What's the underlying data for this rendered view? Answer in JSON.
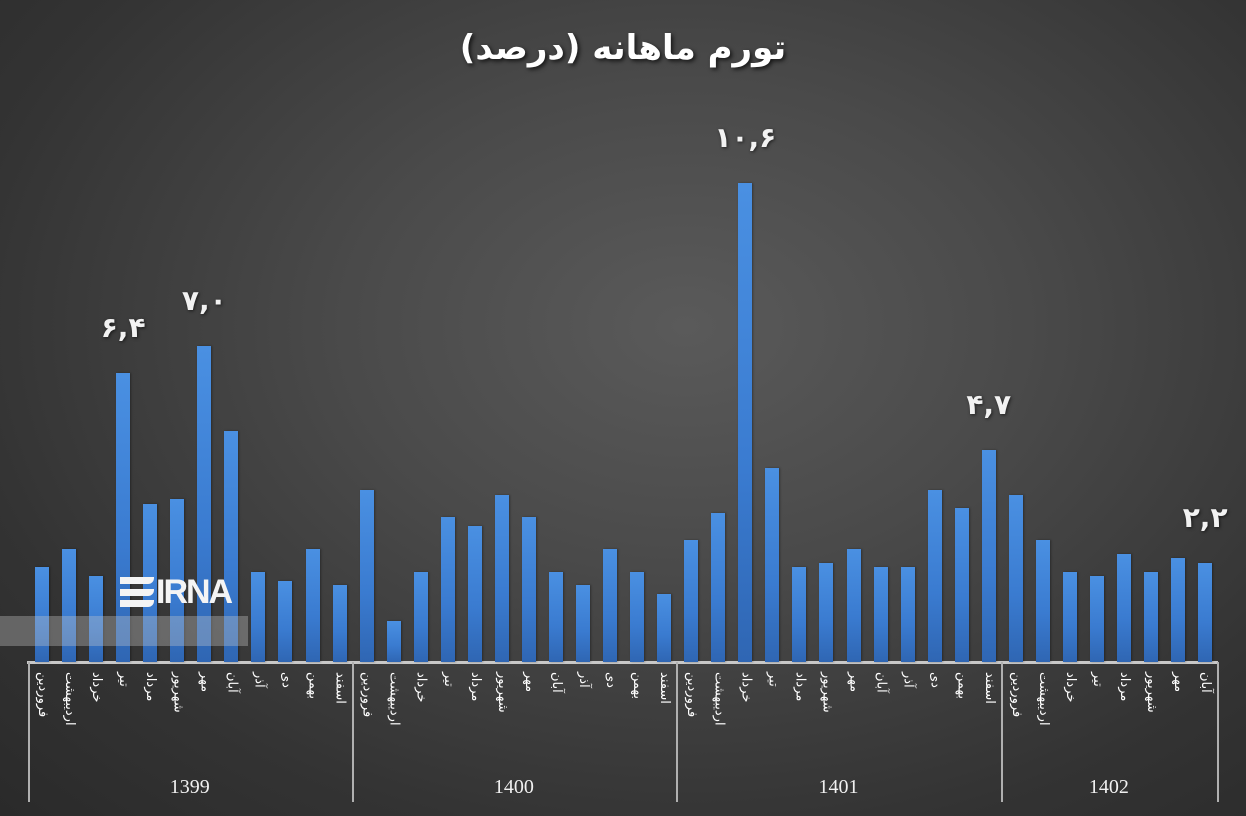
{
  "chart_data": {
    "type": "bar",
    "title": "تورم ماهانه (درصد)",
    "xlabel": "",
    "ylabel": "",
    "ylim": [
      0,
      11
    ],
    "grid": false,
    "legend": null,
    "groups": [
      {
        "year": "1399",
        "months": [
          "فروردین",
          "اردیبهشت",
          "خرداد",
          "تیر",
          "مرداد",
          "شهریور",
          "مهر",
          "آبان",
          "آذر",
          "دی",
          "بهمن",
          "اسفند"
        ],
        "values": [
          2.1,
          2.5,
          1.9,
          6.4,
          3.5,
          3.6,
          7.0,
          5.1,
          2.0,
          1.8,
          2.5,
          1.7
        ]
      },
      {
        "year": "1400",
        "months": [
          "فروردین",
          "اردیبهشت",
          "خرداد",
          "تیر",
          "مرداد",
          "شهریور",
          "مهر",
          "آبان",
          "آذر",
          "دی",
          "بهمن",
          "اسفند"
        ],
        "values": [
          3.8,
          0.9,
          2.0,
          3.2,
          3.0,
          3.7,
          3.2,
          2.0,
          1.7,
          2.5,
          2.0,
          1.5
        ]
      },
      {
        "year": "1401",
        "months": [
          "فروردین",
          "اردیبهشت",
          "خرداد",
          "تیر",
          "مرداد",
          "شهریور",
          "مهر",
          "آبان",
          "آذر",
          "دی",
          "بهمن",
          "اسفند"
        ],
        "values": [
          2.7,
          3.3,
          10.6,
          4.3,
          2.1,
          2.2,
          2.5,
          2.1,
          2.1,
          3.8,
          3.4,
          4.7
        ]
      },
      {
        "year": "1402",
        "months": [
          "فروردین",
          "اردیبهشت",
          "خرداد",
          "تیر",
          "مرداد",
          "شهریور",
          "مهر",
          "آبان"
        ],
        "values": [
          3.7,
          2.7,
          2.0,
          1.9,
          2.4,
          2.0,
          2.3,
          2.2
        ]
      }
    ],
    "annotations": [
      {
        "group": 0,
        "index": 3,
        "label": "۶,۴"
      },
      {
        "group": 0,
        "index": 6,
        "label": "۷,۰"
      },
      {
        "group": 2,
        "index": 2,
        "label": "۱۰,۶"
      },
      {
        "group": 2,
        "index": 11,
        "label": "۴,۷"
      },
      {
        "group": 3,
        "index": 7,
        "label": "۲,۲"
      }
    ],
    "colors": {
      "bar": "#3f86d8",
      "background": "#4a4a4a",
      "text": "#ffffff"
    }
  },
  "watermark": {
    "text": "IRNA"
  }
}
